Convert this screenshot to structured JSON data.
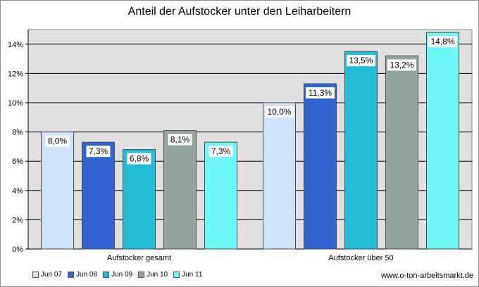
{
  "chart_data": {
    "type": "bar",
    "title": "Anteil der Aufstocker unter den Leiharbeitern",
    "categories": [
      "Aufstocker gesamt",
      "Aufstocker über 50"
    ],
    "series": [
      {
        "name": "Jun 07",
        "values": [
          8.0,
          10.0
        ],
        "labels": [
          "8,0%",
          "10,0%"
        ],
        "color": "#cfe3f8"
      },
      {
        "name": "Jun 08",
        "values": [
          7.3,
          11.3
        ],
        "labels": [
          "7,3%",
          "11,3%"
        ],
        "color": "#2f64d0"
      },
      {
        "name": "Jun 09",
        "values": [
          6.8,
          13.5
        ],
        "labels": [
          "6,8%",
          "13,5%"
        ],
        "color": "#22bcd6"
      },
      {
        "name": "Jun 10",
        "values": [
          8.1,
          13.2
        ],
        "labels": [
          "8,1%",
          "13,2%"
        ],
        "color": "#93a4a0"
      },
      {
        "name": "Jun 11",
        "values": [
          7.3,
          14.8
        ],
        "labels": [
          "7,3%",
          "14,8%"
        ],
        "color": "#6ef7f7"
      }
    ],
    "yticks": [
      "0%",
      "2%",
      "4%",
      "6%",
      "8%",
      "10%",
      "12%",
      "14%"
    ],
    "ylim": [
      0,
      15
    ],
    "grid": true,
    "legend_position": "bottom-left",
    "plot_background": "#e0e0e0"
  },
  "source": "www.o-ton-arbeitsmarkt.de"
}
